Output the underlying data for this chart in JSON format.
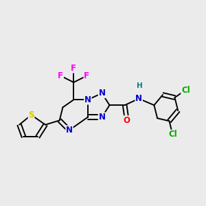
{
  "background_color": "#ebebeb",
  "bond_color": "#000000",
  "atom_colors": {
    "N": "#0000cc",
    "O": "#ff0000",
    "S": "#cccc00",
    "F": "#ff00ff",
    "Cl": "#00aa00",
    "H": "#008080",
    "C": "#000000"
  },
  "font_size": 8.5,
  "title": ""
}
